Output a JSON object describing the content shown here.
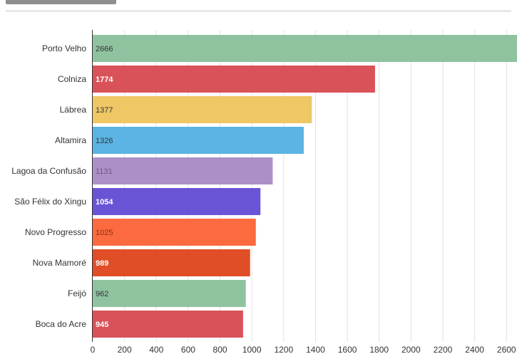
{
  "chart_data": {
    "type": "bar",
    "orientation": "horizontal",
    "categories": [
      "Porto Velho",
      "Colniza",
      "Lábrea",
      "Altamira",
      "Lagoa da Confusão",
      "São Félix do Xingu",
      "Novo Progresso",
      "Nova Mamoré",
      "Feijó",
      "Boca do Acre"
    ],
    "values": [
      2666,
      1774,
      1377,
      1326,
      1131,
      1054,
      1025,
      989,
      962,
      945
    ],
    "value_labels": [
      "2666",
      "1774",
      "1377",
      "1326",
      "1131",
      "1054",
      "1025",
      "989",
      "962",
      "945"
    ],
    "colors": [
      "#8fc3a0",
      "#d9525a",
      "#efc765",
      "#5bb4e4",
      "#ad8fc8",
      "#6a54d6",
      "#fb6b3f",
      "#df4e27",
      "#8fc3a0",
      "#d9525a"
    ],
    "label_colors": [
      "#333333",
      "#ffffff",
      "#333333",
      "#333333",
      "#6b5a84",
      "#ffffff",
      "#8a2e12",
      "#ffffff",
      "#333333",
      "#ffffff"
    ],
    "x_ticks": [
      0,
      200,
      400,
      600,
      800,
      1000,
      1200,
      1400,
      1600,
      1800,
      2000,
      2200,
      2400,
      2600
    ],
    "x_tick_labels": [
      "0",
      "200",
      "400",
      "600",
      "800",
      "1000",
      "1200",
      "1400",
      "1600",
      "1800",
      "2000",
      "2200",
      "2400",
      "2600"
    ],
    "xlim": [
      0,
      2666
    ],
    "grid": true,
    "title": "",
    "xlabel": "",
    "ylabel": ""
  }
}
